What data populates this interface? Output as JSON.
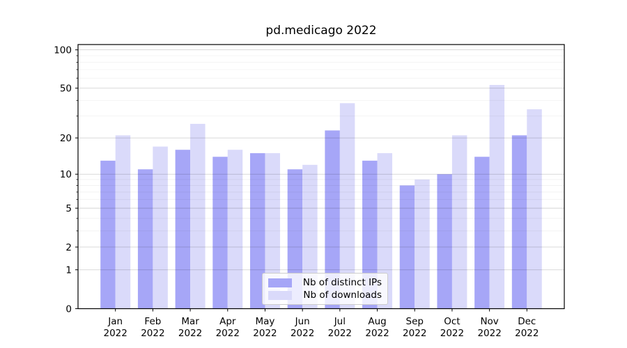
{
  "chart_data": {
    "type": "bar",
    "title": "pd.medicago 2022",
    "categories": [
      "Jan",
      "Feb",
      "Mar",
      "Apr",
      "May",
      "Jun",
      "Jul",
      "Aug",
      "Sep",
      "Oct",
      "Nov",
      "Dec"
    ],
    "x_year_label": "2022",
    "series": [
      {
        "name": "Nb of distinct IPs",
        "color": "#a6a6f7",
        "values": [
          13,
          11,
          16,
          14,
          15,
          11,
          23,
          13,
          8,
          10,
          14,
          21
        ]
      },
      {
        "name": "Nb of downloads",
        "color": "#dadafa",
        "values": [
          21,
          17,
          26,
          16,
          15,
          12,
          38,
          15,
          9,
          21,
          53,
          34
        ]
      }
    ],
    "xlabel": "",
    "ylabel": "",
    "yscale": "symlog",
    "ylim": [
      0,
      110
    ],
    "yticks": [
      0,
      1,
      2,
      5,
      10,
      20,
      50,
      100
    ],
    "yminorticks": [
      3,
      4,
      6,
      7,
      8,
      9,
      30,
      40,
      60,
      70,
      80,
      90
    ],
    "grid": "on",
    "legend_position": "lower center",
    "colors": {
      "spine": "#000000",
      "major_grid": "rgba(0,0,0,0.17)",
      "minor_grid": "rgba(0,0,0,0.06)",
      "background": "#ffffff"
    }
  }
}
